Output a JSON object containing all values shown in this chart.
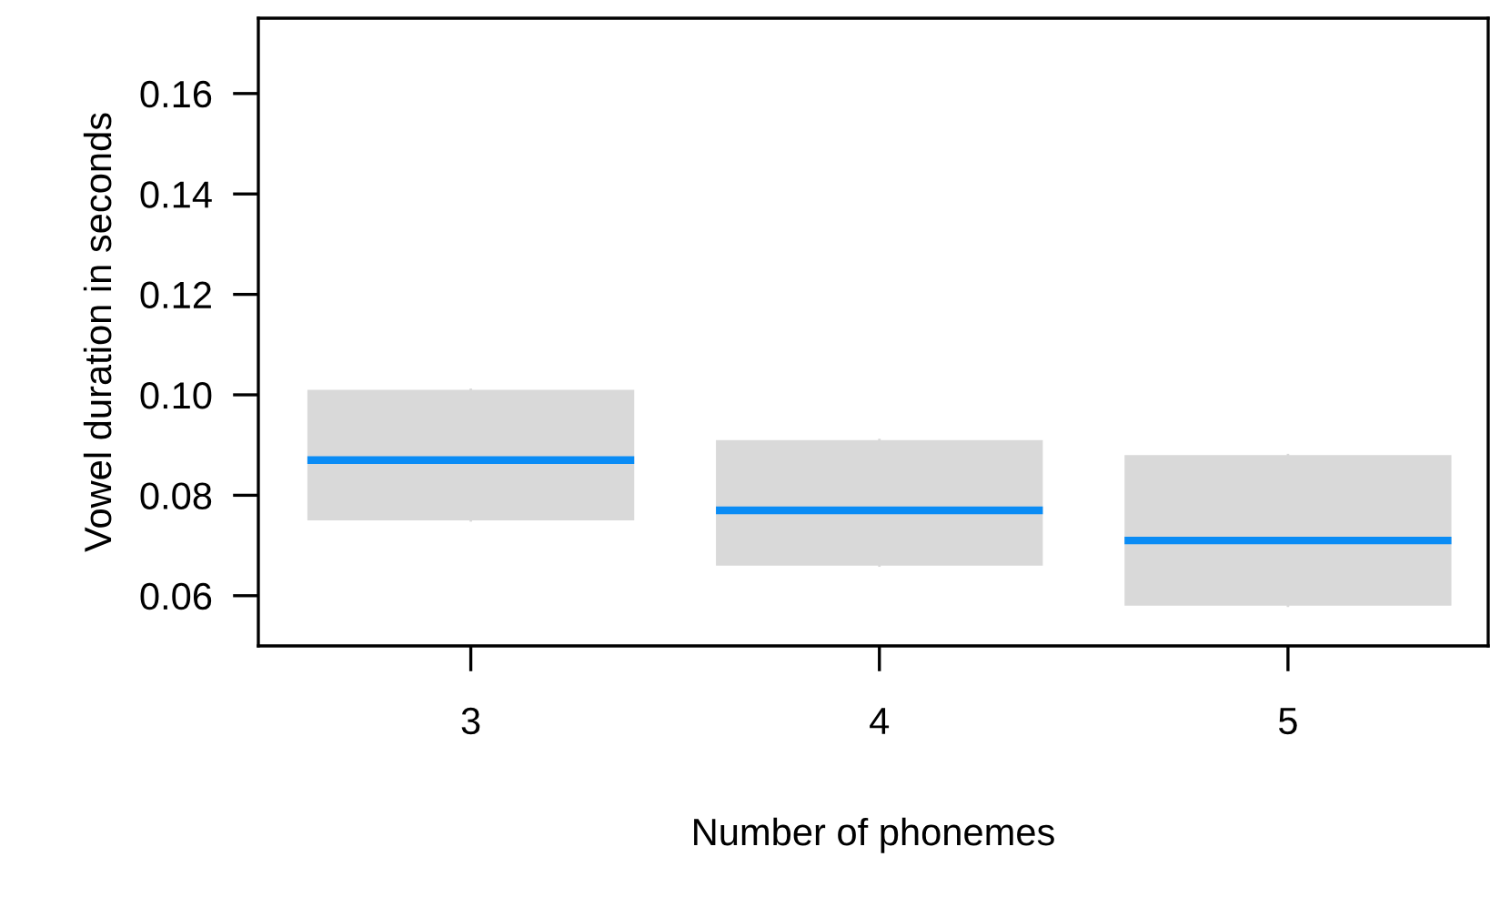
{
  "chart_data": {
    "type": "box",
    "xlabel": "Number of phonemes",
    "ylabel": "Vowel duration in seconds",
    "categories": [
      "3",
      "4",
      "5"
    ],
    "boxes": [
      {
        "low": 0.075,
        "q1": 0.075,
        "median": 0.087,
        "q3": 0.101,
        "high": 0.101
      },
      {
        "low": 0.066,
        "q1": 0.066,
        "median": 0.077,
        "q3": 0.091,
        "high": 0.091
      },
      {
        "low": 0.058,
        "q1": 0.058,
        "median": 0.071,
        "q3": 0.088,
        "high": 0.088
      }
    ],
    "colors": [
      "#d9d9d9",
      "#d9d9d9",
      "#d9d9d9"
    ],
    "color": "#0a8cf5",
    "ylim": [
      0.05,
      0.175
    ],
    "yticks": [
      {
        "value": 0.06,
        "label": "0.06"
      },
      {
        "value": 0.08,
        "label": "0.08"
      },
      {
        "value": 0.1,
        "label": "0.10"
      },
      {
        "value": 0.12,
        "label": "0.12"
      },
      {
        "value": 0.14,
        "label": "0.14"
      },
      {
        "value": 0.16,
        "label": "0.16"
      }
    ],
    "grid": false
  }
}
